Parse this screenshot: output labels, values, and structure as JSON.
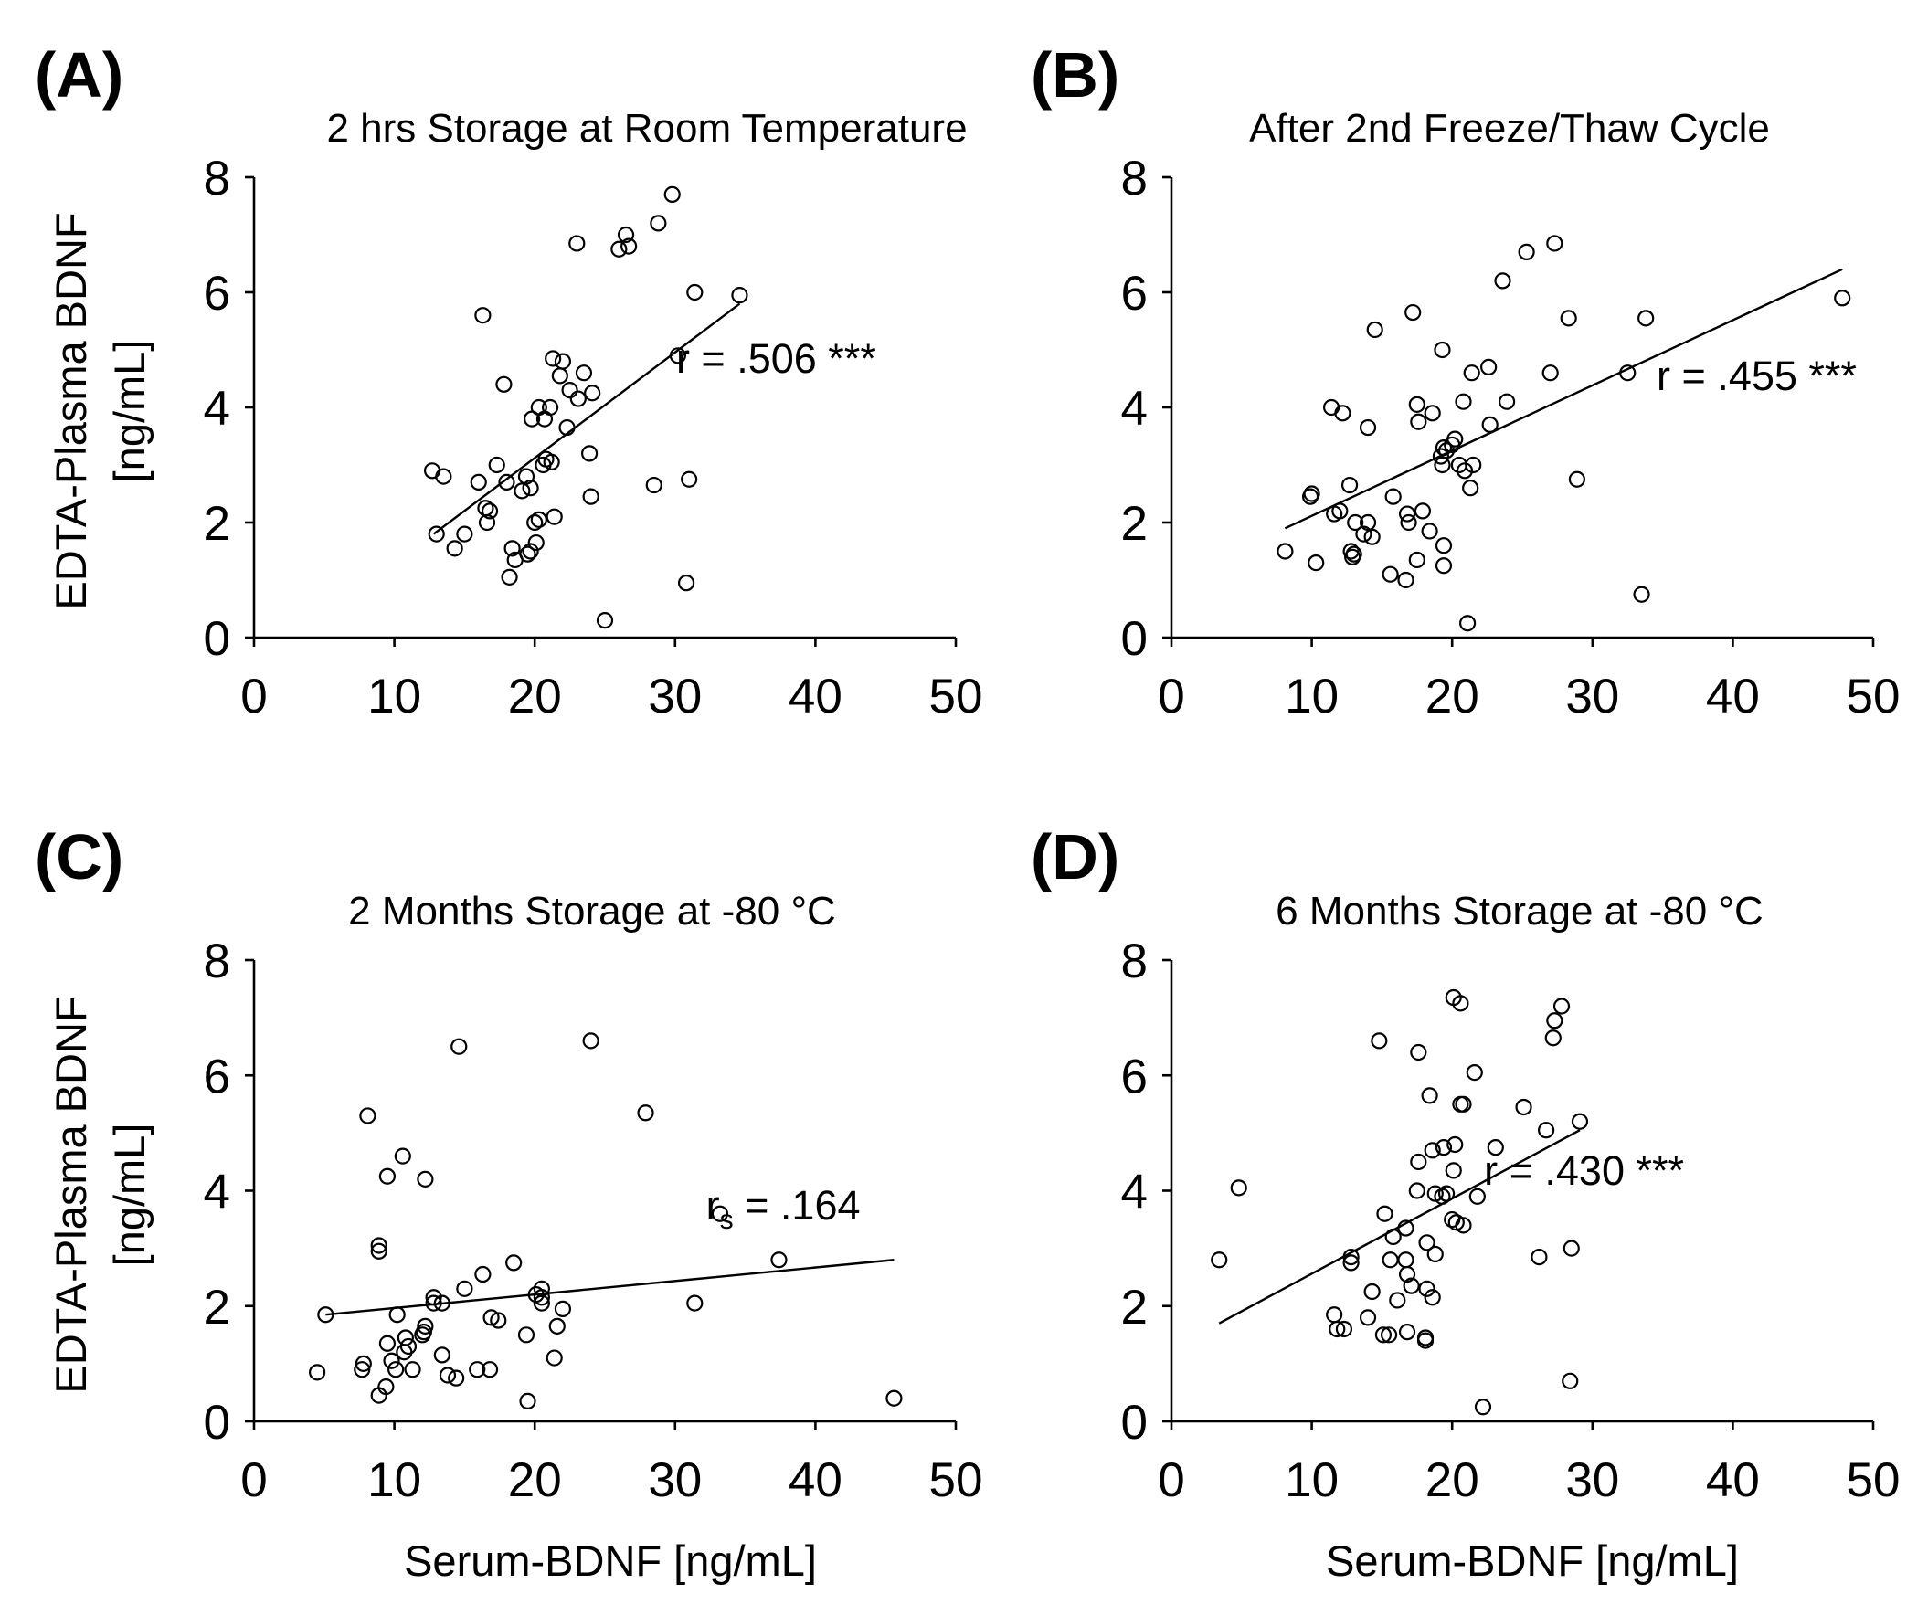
{
  "chart_data": [
    {
      "panel": "(A)",
      "type": "scatter",
      "title": "2 hrs Storage at Room Temperature",
      "xlabel": "",
      "ylabel_lines": [
        "EDTA-Plasma BDNF",
        "[ng/mL]"
      ],
      "xlim": [
        0,
        50
      ],
      "ylim": [
        0,
        8
      ],
      "xticks": [
        0,
        10,
        20,
        30,
        40,
        50
      ],
      "yticks": [
        0,
        2,
        4,
        6,
        8
      ],
      "annotation": {
        "text": "r = .506 ***",
        "sub": "",
        "after_sub": "",
        "x": 37.2,
        "y": 4.6
      },
      "fit": {
        "x": [
          12.8,
          34.6
        ],
        "y": [
          1.8,
          5.8
        ]
      },
      "points": [
        [
          29.8,
          7.7
        ],
        [
          28.8,
          7.2
        ],
        [
          26.5,
          7.0
        ],
        [
          26.7,
          6.8
        ],
        [
          26.0,
          6.75
        ],
        [
          23.0,
          6.85
        ],
        [
          31.4,
          6.0
        ],
        [
          34.6,
          5.95
        ],
        [
          16.3,
          5.6
        ],
        [
          30.2,
          4.9
        ],
        [
          21.3,
          4.85
        ],
        [
          22.0,
          4.8
        ],
        [
          21.8,
          4.55
        ],
        [
          23.5,
          4.6
        ],
        [
          17.8,
          4.4
        ],
        [
          22.5,
          4.3
        ],
        [
          23.1,
          4.15
        ],
        [
          24.1,
          4.25
        ],
        [
          20.3,
          4.0
        ],
        [
          21.1,
          4.0
        ],
        [
          19.8,
          3.8
        ],
        [
          20.7,
          3.8
        ],
        [
          22.3,
          3.65
        ],
        [
          20.8,
          3.1
        ],
        [
          21.2,
          3.05
        ],
        [
          20.6,
          3.0
        ],
        [
          23.9,
          3.2
        ],
        [
          12.7,
          2.9
        ],
        [
          13.5,
          2.8
        ],
        [
          17.3,
          3.0
        ],
        [
          16.0,
          2.7
        ],
        [
          18.0,
          2.7
        ],
        [
          19.4,
          2.8
        ],
        [
          19.1,
          2.55
        ],
        [
          19.7,
          2.6
        ],
        [
          31.0,
          2.75
        ],
        [
          28.5,
          2.65
        ],
        [
          24.0,
          2.45
        ],
        [
          16.5,
          2.25
        ],
        [
          16.8,
          2.2
        ],
        [
          16.6,
          2.0
        ],
        [
          20.3,
          2.05
        ],
        [
          21.4,
          2.1
        ],
        [
          20.0,
          2.0
        ],
        [
          13.0,
          1.8
        ],
        [
          15.0,
          1.8
        ],
        [
          14.3,
          1.55
        ],
        [
          18.4,
          1.55
        ],
        [
          19.5,
          1.45
        ],
        [
          19.7,
          1.5
        ],
        [
          20.1,
          1.65
        ],
        [
          18.6,
          1.35
        ],
        [
          18.2,
          1.05
        ],
        [
          30.8,
          0.95
        ],
        [
          25.0,
          0.3
        ]
      ]
    },
    {
      "panel": "(B)",
      "type": "scatter",
      "title": "After 2nd Freeze/Thaw Cycle",
      "xlabel": "",
      "ylabel_lines": [],
      "xlim": [
        0,
        50
      ],
      "ylim": [
        0,
        8
      ],
      "xticks": [
        0,
        10,
        20,
        30,
        40,
        50
      ],
      "yticks": [
        0,
        2,
        4,
        6,
        8
      ],
      "annotation": {
        "text": "r = .455 ***",
        "sub": "",
        "after_sub": "",
        "x": 41.7,
        "y": 4.3
      },
      "fit": {
        "x": [
          8.1,
          47.8
        ],
        "y": [
          1.9,
          6.4
        ]
      },
      "points": [
        [
          27.3,
          6.85
        ],
        [
          25.3,
          6.7
        ],
        [
          23.6,
          6.2
        ],
        [
          47.8,
          5.9
        ],
        [
          17.2,
          5.65
        ],
        [
          28.3,
          5.55
        ],
        [
          33.8,
          5.55
        ],
        [
          14.5,
          5.35
        ],
        [
          19.3,
          5.0
        ],
        [
          22.6,
          4.7
        ],
        [
          21.4,
          4.6
        ],
        [
          27.0,
          4.6
        ],
        [
          32.5,
          4.6
        ],
        [
          23.9,
          4.1
        ],
        [
          20.8,
          4.1
        ],
        [
          11.4,
          4.0
        ],
        [
          17.5,
          4.05
        ],
        [
          12.2,
          3.9
        ],
        [
          18.6,
          3.9
        ],
        [
          17.6,
          3.75
        ],
        [
          22.7,
          3.7
        ],
        [
          14.0,
          3.65
        ],
        [
          20.2,
          3.45
        ],
        [
          19.4,
          3.3
        ],
        [
          19.6,
          3.25
        ],
        [
          19.2,
          3.15
        ],
        [
          20.0,
          3.35
        ],
        [
          20.5,
          3.0
        ],
        [
          21.5,
          3.0
        ],
        [
          19.3,
          3.0
        ],
        [
          20.9,
          2.9
        ],
        [
          28.9,
          2.75
        ],
        [
          12.7,
          2.65
        ],
        [
          21.3,
          2.6
        ],
        [
          9.9,
          2.45
        ],
        [
          10.0,
          2.5
        ],
        [
          15.8,
          2.45
        ],
        [
          12.0,
          2.2
        ],
        [
          11.6,
          2.15
        ],
        [
          16.8,
          2.15
        ],
        [
          17.9,
          2.2
        ],
        [
          13.1,
          2.0
        ],
        [
          14.0,
          2.0
        ],
        [
          16.9,
          2.0
        ],
        [
          13.7,
          1.8
        ],
        [
          14.3,
          1.75
        ],
        [
          18.4,
          1.85
        ],
        [
          19.4,
          1.6
        ],
        [
          8.1,
          1.5
        ],
        [
          12.8,
          1.5
        ],
        [
          13.0,
          1.45
        ],
        [
          12.9,
          1.4
        ],
        [
          17.5,
          1.35
        ],
        [
          10.3,
          1.3
        ],
        [
          19.4,
          1.25
        ],
        [
          15.6,
          1.1
        ],
        [
          16.7,
          1.0
        ],
        [
          33.5,
          0.75
        ],
        [
          21.1,
          0.25
        ]
      ]
    },
    {
      "panel": "(C)",
      "type": "scatter",
      "title": "2 Months Storage at -80 °C",
      "xlabel": "Serum-BDNF [ng/mL]",
      "ylabel_lines": [
        "EDTA-Plasma BDNF",
        "[ng/mL]"
      ],
      "xlim": [
        0,
        50
      ],
      "ylim": [
        0,
        8
      ],
      "xticks": [
        0,
        10,
        20,
        30,
        40,
        50
      ],
      "yticks": [
        0,
        2,
        4,
        6,
        8
      ],
      "annotation": {
        "text": "r",
        "sub": "s",
        "after_sub": " = .164",
        "x": 37.7,
        "y": 3.5
      },
      "fit": {
        "x": [
          5.1,
          45.6
        ],
        "y": [
          1.85,
          2.8
        ]
      },
      "points": [
        [
          24.0,
          6.6
        ],
        [
          14.6,
          6.5
        ],
        [
          27.9,
          5.35
        ],
        [
          8.1,
          5.3
        ],
        [
          10.6,
          4.6
        ],
        [
          9.5,
          4.25
        ],
        [
          12.2,
          4.2
        ],
        [
          33.2,
          3.6
        ],
        [
          8.9,
          3.05
        ],
        [
          8.9,
          2.95
        ],
        [
          37.4,
          2.8
        ],
        [
          18.5,
          2.75
        ],
        [
          16.3,
          2.55
        ],
        [
          15.0,
          2.3
        ],
        [
          20.5,
          2.3
        ],
        [
          20.1,
          2.2
        ],
        [
          20.5,
          2.15
        ],
        [
          12.8,
          2.15
        ],
        [
          13.4,
          2.05
        ],
        [
          12.8,
          2.05
        ],
        [
          31.4,
          2.05
        ],
        [
          20.5,
          2.05
        ],
        [
          22.0,
          1.95
        ],
        [
          5.1,
          1.85
        ],
        [
          10.2,
          1.85
        ],
        [
          16.9,
          1.8
        ],
        [
          17.4,
          1.75
        ],
        [
          12.2,
          1.65
        ],
        [
          21.6,
          1.65
        ],
        [
          12.0,
          1.5
        ],
        [
          12.1,
          1.55
        ],
        [
          19.4,
          1.5
        ],
        [
          10.8,
          1.45
        ],
        [
          11.0,
          1.3
        ],
        [
          9.5,
          1.35
        ],
        [
          10.7,
          1.2
        ],
        [
          13.4,
          1.15
        ],
        [
          21.4,
          1.1
        ],
        [
          9.8,
          1.05
        ],
        [
          7.8,
          1.0
        ],
        [
          7.7,
          0.9
        ],
        [
          10.1,
          0.9
        ],
        [
          11.3,
          0.9
        ],
        [
          15.9,
          0.9
        ],
        [
          16.8,
          0.9
        ],
        [
          4.5,
          0.85
        ],
        [
          13.8,
          0.8
        ],
        [
          14.4,
          0.75
        ],
        [
          9.4,
          0.6
        ],
        [
          8.9,
          0.45
        ],
        [
          19.5,
          0.35
        ],
        [
          45.6,
          0.4
        ]
      ]
    },
    {
      "panel": "(D)",
      "type": "scatter",
      "title": "6 Months Storage at -80 °C",
      "xlabel": "Serum-BDNF [ng/mL]",
      "ylabel_lines": [],
      "xlim": [
        0,
        50
      ],
      "ylim": [
        0,
        8
      ],
      "xticks": [
        0,
        10,
        20,
        30,
        40,
        50
      ],
      "yticks": [
        0,
        2,
        4,
        6,
        8
      ],
      "annotation": {
        "text": "r = .430 ***",
        "sub": "",
        "after_sub": "",
        "x": 29.4,
        "y": 4.1
      },
      "fit": {
        "x": [
          3.4,
          29.1
        ],
        "y": [
          1.7,
          5.05
        ]
      },
      "points": [
        [
          20.1,
          7.35
        ],
        [
          20.6,
          7.25
        ],
        [
          27.8,
          7.2
        ],
        [
          27.3,
          6.95
        ],
        [
          27.2,
          6.65
        ],
        [
          14.8,
          6.6
        ],
        [
          17.6,
          6.4
        ],
        [
          21.6,
          6.05
        ],
        [
          18.4,
          5.65
        ],
        [
          20.6,
          5.5
        ],
        [
          20.8,
          5.5
        ],
        [
          25.1,
          5.45
        ],
        [
          29.1,
          5.2
        ],
        [
          26.7,
          5.05
        ],
        [
          20.2,
          4.8
        ],
        [
          23.1,
          4.75
        ],
        [
          18.6,
          4.7
        ],
        [
          19.4,
          4.75
        ],
        [
          17.6,
          4.5
        ],
        [
          20.1,
          4.35
        ],
        [
          4.8,
          4.05
        ],
        [
          17.5,
          4.0
        ],
        [
          18.8,
          3.95
        ],
        [
          19.6,
          3.95
        ],
        [
          21.8,
          3.9
        ],
        [
          19.3,
          3.9
        ],
        [
          15.2,
          3.6
        ],
        [
          20.0,
          3.5
        ],
        [
          20.3,
          3.45
        ],
        [
          20.8,
          3.4
        ],
        [
          16.7,
          3.35
        ],
        [
          15.8,
          3.2
        ],
        [
          18.2,
          3.1
        ],
        [
          3.4,
          2.8
        ],
        [
          12.8,
          2.85
        ],
        [
          12.8,
          2.75
        ],
        [
          15.6,
          2.8
        ],
        [
          16.7,
          2.8
        ],
        [
          18.8,
          2.9
        ],
        [
          26.2,
          2.85
        ],
        [
          28.5,
          3.0
        ],
        [
          16.8,
          2.55
        ],
        [
          17.1,
          2.35
        ],
        [
          18.2,
          2.3
        ],
        [
          14.3,
          2.25
        ],
        [
          16.1,
          2.1
        ],
        [
          18.6,
          2.15
        ],
        [
          11.6,
          1.85
        ],
        [
          12.3,
          1.6
        ],
        [
          11.8,
          1.6
        ],
        [
          14.0,
          1.8
        ],
        [
          15.5,
          1.5
        ],
        [
          15.1,
          1.5
        ],
        [
          16.8,
          1.55
        ],
        [
          18.1,
          1.45
        ],
        [
          18.1,
          1.4
        ],
        [
          28.4,
          0.7
        ],
        [
          22.2,
          0.25
        ]
      ]
    }
  ]
}
